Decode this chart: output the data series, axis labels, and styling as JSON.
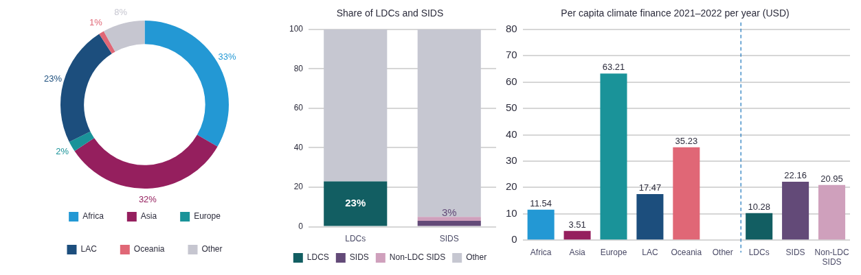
{
  "chart_data": [
    {
      "type": "donut",
      "categories": [
        "Africa",
        "Asia",
        "Europe",
        "LAC",
        "Oceania",
        "Other"
      ],
      "values": [
        33,
        32,
        2,
        23,
        1,
        8
      ],
      "value_labels": [
        "33%",
        "32%",
        "2%",
        "23%",
        "1%",
        "8%"
      ],
      "colors": [
        "#2398d4",
        "#951f5e",
        "#1a9399",
        "#1c4e7d",
        "#e06776",
        "#c6c6d0"
      ],
      "legend": "bottom"
    },
    {
      "type": "bar",
      "title": "Share of LDCs and SIDS",
      "categories": [
        "LDCs",
        "SIDS"
      ],
      "stacked": true,
      "series": [
        {
          "name": "LDCS",
          "color": "#125e62",
          "values": [
            23,
            null
          ],
          "value_labels": [
            "23%",
            null
          ]
        },
        {
          "name": "SIDS",
          "color": "#634a78",
          "values": [
            null,
            3
          ],
          "value_labels": [
            null,
            "3%"
          ]
        },
        {
          "name": "Non-LDC SIDS",
          "color": "#cfa0bc",
          "values": [
            null,
            2
          ]
        },
        {
          "name": "Other",
          "color": "#c6c7d1",
          "values": [
            77,
            95
          ]
        }
      ],
      "ylim": [
        0,
        100
      ],
      "yticks": [
        0,
        20,
        40,
        60,
        80,
        100
      ],
      "grid": "y",
      "legend": "bottom"
    },
    {
      "type": "bar",
      "title": "Per capita climate finance 2021–2022 per year (USD)",
      "categories": [
        "Africa",
        "Asia",
        "Europe",
        "LAC",
        "Oceania",
        "Other",
        "LDCs",
        "SIDS",
        "Non-LDC SIDS"
      ],
      "values": [
        11.54,
        3.51,
        63.21,
        17.47,
        35.23,
        null,
        10.28,
        22.16,
        20.95
      ],
      "colors": [
        "#2398d4",
        "#951f5e",
        "#1a9399",
        "#1c4e7d",
        "#e06776",
        "#c6c7d1",
        "#125e62",
        "#634a78",
        "#cfa0bc"
      ],
      "data_labels": true,
      "ylim": [
        0,
        80
      ],
      "yticks": [
        0,
        10,
        20,
        30,
        40,
        50,
        60,
        70,
        80
      ],
      "grid": "y",
      "ref_lines": [
        {
          "axis": "x",
          "value": "LDCs",
          "color": "#2a7fc1",
          "line_style": "dashed"
        }
      ]
    }
  ]
}
